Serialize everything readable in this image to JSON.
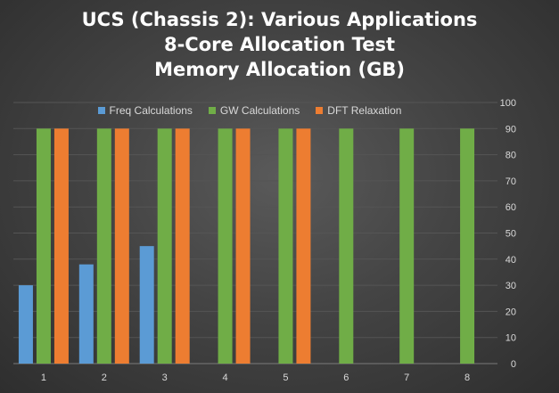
{
  "chart_data": {
    "type": "bar",
    "title_lines": [
      "UCS (Chassis 2): Various Applications",
      "8-Core Allocation Test",
      "Memory Allocation (GB)"
    ],
    "categories": [
      "1",
      "2",
      "3",
      "4",
      "5",
      "6",
      "7",
      "8"
    ],
    "series": [
      {
        "name": "Freq Calculations",
        "values": [
          30,
          38,
          45,
          null,
          null,
          null,
          null,
          null
        ],
        "color": "#5b9bd5"
      },
      {
        "name": "GW Calculations",
        "values": [
          90,
          90,
          90,
          90,
          90,
          90,
          90,
          90
        ],
        "color": "#70ad47"
      },
      {
        "name": "DFT Relaxation",
        "values": [
          90,
          90,
          90,
          90,
          90,
          null,
          null,
          null
        ],
        "color": "#ed7d31"
      }
    ],
    "y_ticks": [
      "0",
      "10",
      "20",
      "30",
      "40",
      "50",
      "60",
      "70",
      "80",
      "90",
      "100"
    ],
    "ylim": [
      0,
      100
    ],
    "grid": true,
    "legend_position": "top",
    "y_axis_side": "right"
  }
}
